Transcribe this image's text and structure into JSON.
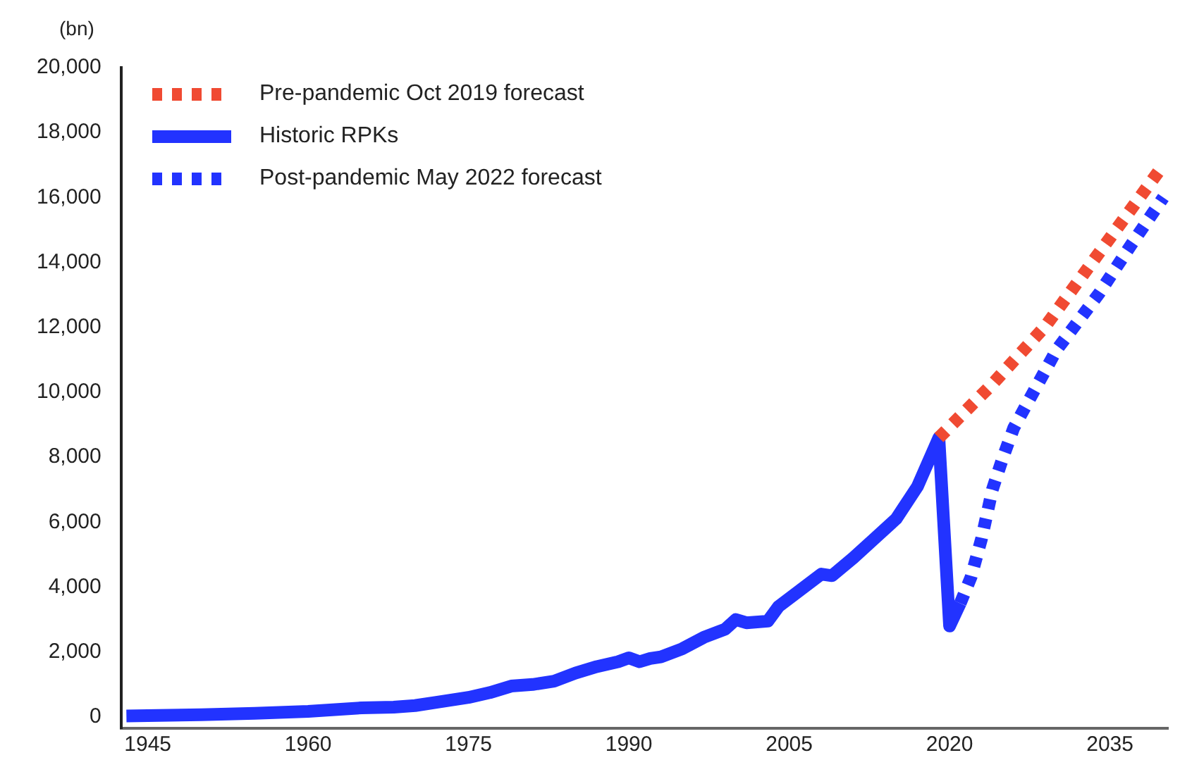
{
  "chart_data": {
    "type": "line",
    "ylabel": "(bn)",
    "xlim": [
      1942.5,
      2040.5
    ],
    "xticks": [
      1945,
      1960,
      1975,
      1990,
      2005,
      2020,
      2035
    ],
    "ylim": [
      -350,
      20000
    ],
    "yticks": [
      {
        "value": 0,
        "label": "0"
      },
      {
        "value": 2000,
        "label": "2,000"
      },
      {
        "value": 4000,
        "label": "4,000"
      },
      {
        "value": 6000,
        "label": "6,000"
      },
      {
        "value": 8000,
        "label": "8,000"
      },
      {
        "value": 10000,
        "label": "10,000"
      },
      {
        "value": 12000,
        "label": "12,000"
      },
      {
        "value": 14000,
        "label": "14,000"
      },
      {
        "value": 16000,
        "label": "16,000"
      },
      {
        "value": 18000,
        "label": "18,000"
      },
      {
        "value": 20000,
        "label": "20,000"
      }
    ],
    "grid": false,
    "legend": "top left",
    "marker": "none",
    "series": [
      {
        "name": "Pre-pandemic Oct 2019 forecast",
        "color": "#f04a32",
        "line_style": "dotted",
        "x": [
          2019,
          2024,
          2029,
          2034,
          2040
        ],
        "values": [
          8600,
          10250,
          12050,
          14300,
          17000
        ]
      },
      {
        "name": "Historic RPKs",
        "color": "#2233ff",
        "line_style": "solid",
        "x": [
          1943,
          1945,
          1950,
          1955,
          1960,
          1965,
          1968,
          1970,
          1972,
          1975,
          1977,
          1979,
          1981,
          1983,
          1985,
          1987,
          1989,
          1990,
          1991,
          1992,
          1993,
          1995,
          1997,
          1999,
          2000,
          2001,
          2003,
          2004,
          2006,
          2008,
          2009,
          2011,
          2013,
          2015,
          2017,
          2019,
          2020,
          2021
        ],
        "values": [
          30,
          40,
          70,
          110,
          170,
          280,
          300,
          350,
          450,
          600,
          750,
          950,
          1000,
          1100,
          1350,
          1550,
          1700,
          1820,
          1700,
          1800,
          1850,
          2100,
          2450,
          2700,
          3000,
          2900,
          2950,
          3400,
          3900,
          4400,
          4350,
          4900,
          5500,
          6100,
          7100,
          8600,
          2800,
          3500
        ]
      },
      {
        "name": "Post-pandemic May 2022 forecast",
        "color": "#2233ff",
        "line_style": "dotted",
        "x": [
          2021,
          2022,
          2023,
          2024,
          2025,
          2026,
          2028,
          2030,
          2034,
          2037,
          2040
        ],
        "values": [
          3500,
          4300,
          5500,
          7000,
          8000,
          8900,
          10100,
          11300,
          13050,
          14550,
          16000
        ]
      }
    ]
  }
}
